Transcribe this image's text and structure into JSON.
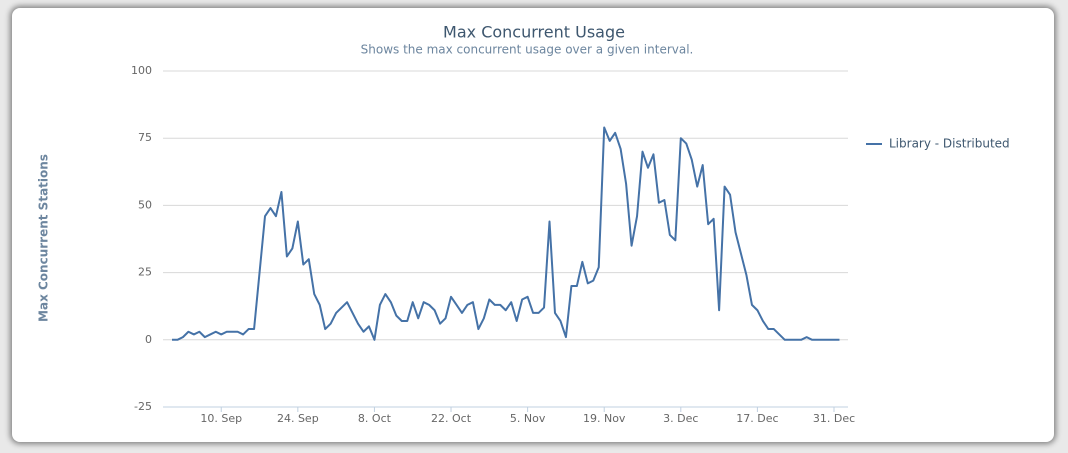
{
  "chart_data": {
    "type": "line",
    "title": "Max Concurrent Usage",
    "subtitle": "Shows the max concurrent usage over a given interval.",
    "y_label": "Max Concurrent Stations",
    "x": [
      "1. Sep",
      "2. Sep",
      "3. Sep",
      "4. Sep",
      "5. Sep",
      "6. Sep",
      "7. Sep",
      "8. Sep",
      "9. Sep",
      "10. Sep",
      "11. Sep",
      "12. Sep",
      "13. Sep",
      "14. Sep",
      "15. Sep",
      "16. Sep",
      "17. Sep",
      "18. Sep",
      "19. Sep",
      "20. Sep",
      "21. Sep",
      "22. Sep",
      "23. Sep",
      "24. Sep",
      "25. Sep",
      "26. Sep",
      "27. Sep",
      "28. Sep",
      "29. Sep",
      "30. Sep",
      "1. Oct",
      "2. Oct",
      "3. Oct",
      "4. Oct",
      "5. Oct",
      "6. Oct",
      "7. Oct",
      "8. Oct",
      "9. Oct",
      "10. Oct",
      "11. Oct",
      "12. Oct",
      "13. Oct",
      "14. Oct",
      "15. Oct",
      "16. Oct",
      "17. Oct",
      "18. Oct",
      "19. Oct",
      "20. Oct",
      "21. Oct",
      "22. Oct",
      "23. Oct",
      "24. Oct",
      "25. Oct",
      "26. Oct",
      "27. Oct",
      "28. Oct",
      "29. Oct",
      "30. Oct",
      "31. Oct",
      "1. Nov",
      "2. Nov",
      "3. Nov",
      "4. Nov",
      "5. Nov",
      "6. Nov",
      "7. Nov",
      "8. Nov",
      "9. Nov",
      "10. Nov",
      "11. Nov",
      "12. Nov",
      "13. Nov",
      "14. Nov",
      "15. Nov",
      "16. Nov",
      "17. Nov",
      "18. Nov",
      "19. Nov",
      "20. Nov",
      "21. Nov",
      "22. Nov",
      "23. Nov",
      "24. Nov",
      "25. Nov",
      "26. Nov",
      "27. Nov",
      "28. Nov",
      "29. Nov",
      "30. Nov",
      "1. Dec",
      "2. Dec",
      "3. Dec",
      "4. Dec",
      "5. Dec",
      "6. Dec",
      "7. Dec",
      "8. Dec",
      "9. Dec",
      "10. Dec",
      "11. Dec",
      "12. Dec",
      "13. Dec",
      "14. Dec",
      "15. Dec",
      "16. Dec",
      "17. Dec",
      "18. Dec",
      "19. Dec",
      "20. Dec",
      "21. Dec",
      "22. Dec",
      "23. Dec",
      "24. Dec",
      "25. Dec",
      "26. Dec",
      "27. Dec",
      "28. Dec",
      "29. Dec",
      "30. Dec",
      "31. Dec",
      "1. Jan"
    ],
    "series": [
      {
        "name": "Library - Distributed",
        "color": "#4572a7",
        "values": [
          0,
          0,
          1,
          3,
          2,
          3,
          1,
          2,
          3,
          2,
          3,
          3,
          3,
          2,
          4,
          4,
          25,
          46,
          49,
          46,
          55,
          31,
          34,
          44,
          28,
          30,
          17,
          13,
          4,
          6,
          10,
          12,
          14,
          10,
          6,
          3,
          5,
          0,
          13,
          17,
          14,
          9,
          7,
          7,
          14,
          8,
          14,
          13,
          11,
          6,
          8,
          16,
          13,
          10,
          13,
          14,
          4,
          8,
          15,
          13,
          13,
          11,
          14,
          7,
          15,
          16,
          10,
          10,
          12,
          44,
          10,
          7,
          1,
          20,
          20,
          29,
          21,
          22,
          27,
          79,
          74,
          77,
          71,
          58,
          35,
          46,
          70,
          64,
          69,
          51,
          52,
          39,
          37,
          75,
          73,
          67,
          57,
          65,
          43,
          45,
          11,
          57,
          54,
          40,
          32,
          24,
          13,
          11,
          7,
          4,
          4,
          2,
          0,
          0,
          0,
          0,
          1,
          0,
          0,
          0,
          0,
          0,
          0
        ]
      }
    ],
    "xticks": [
      "10. Sep",
      "24. Sep",
      "8. Oct",
      "22. Oct",
      "5. Nov",
      "19. Nov",
      "3. Dec",
      "17. Dec",
      "31. Dec"
    ],
    "ylim": [
      -25,
      100
    ],
    "yticks": [
      -25,
      0,
      25,
      50,
      75,
      100
    ],
    "grid": true,
    "legend": "right"
  }
}
